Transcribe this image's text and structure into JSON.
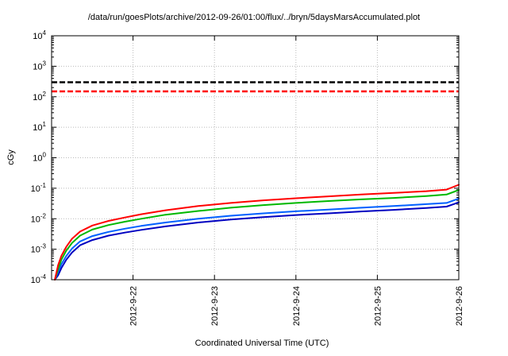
{
  "title": "/data/run/goesPlots/archive/2012-09-26/01:00/flux/../bryn/5daysMarsAccumulated.plot",
  "xlabel": "Coordinated Universal Time (UTC)",
  "ylabel": "cGy",
  "chart_data": {
    "type": "line",
    "title": "/data/run/goesPlots/archive/2012-09-26/01:00/flux/../bryn/5daysMarsAccumulated.plot",
    "xlabel": "Coordinated Universal Time (UTC)",
    "ylabel": "cGy",
    "y_scale": "log",
    "y_log_range": [
      -4,
      4
    ],
    "y_tick_exponents": [
      4,
      3,
      2,
      1,
      0,
      -1,
      -2,
      -3,
      -4
    ],
    "x_range": [
      0,
      5
    ],
    "x_ticks": [
      {
        "t": 1,
        "label": "2012-9-22"
      },
      {
        "t": 2,
        "label": "2012-9-23"
      },
      {
        "t": 3,
        "label": "2012-9-24"
      },
      {
        "t": 4,
        "label": "2012-9-25"
      },
      {
        "t": 5,
        "label": "2012-9-26"
      }
    ],
    "grid": true,
    "colors": {
      "grid": "#bbbbbb",
      "border": "#000000"
    },
    "thresholds": [
      {
        "name": "threshold-black-dashed",
        "value": 300,
        "color": "#000000"
      },
      {
        "name": "threshold-red-dashed",
        "value": 150,
        "color": "#ff0000"
      }
    ],
    "series": [
      {
        "name": "dark-blue",
        "color": "#0000c0",
        "points": [
          [
            0.04,
            0.0001
          ],
          [
            0.08,
            0.00014
          ],
          [
            0.12,
            0.00024
          ],
          [
            0.18,
            0.00045
          ],
          [
            0.25,
            0.00078
          ],
          [
            0.35,
            0.00135
          ],
          [
            0.5,
            0.002
          ],
          [
            0.7,
            0.0028
          ],
          [
            0.9,
            0.0035
          ],
          [
            1.1,
            0.0043
          ],
          [
            1.4,
            0.0056
          ],
          [
            1.8,
            0.0075
          ],
          [
            2.2,
            0.0094
          ],
          [
            2.6,
            0.0113
          ],
          [
            3.0,
            0.0132
          ],
          [
            3.4,
            0.015
          ],
          [
            3.8,
            0.0173
          ],
          [
            4.2,
            0.0195
          ],
          [
            4.6,
            0.0225
          ],
          [
            4.85,
            0.025
          ],
          [
            4.95,
            0.031
          ],
          [
            5.0,
            0.035
          ]
        ]
      },
      {
        "name": "blue",
        "color": "#0060ff",
        "points": [
          [
            0.04,
            0.0001
          ],
          [
            0.08,
            0.00018
          ],
          [
            0.12,
            0.00032
          ],
          [
            0.18,
            0.0006
          ],
          [
            0.25,
            0.00105
          ],
          [
            0.35,
            0.0018
          ],
          [
            0.5,
            0.0027
          ],
          [
            0.7,
            0.0037
          ],
          [
            0.9,
            0.0047
          ],
          [
            1.1,
            0.0058
          ],
          [
            1.4,
            0.0075
          ],
          [
            1.8,
            0.01
          ],
          [
            2.2,
            0.0125
          ],
          [
            2.6,
            0.015
          ],
          [
            3.0,
            0.0175
          ],
          [
            3.4,
            0.02
          ],
          [
            3.8,
            0.023
          ],
          [
            4.2,
            0.026
          ],
          [
            4.6,
            0.03
          ],
          [
            4.85,
            0.033
          ],
          [
            4.95,
            0.041
          ],
          [
            5.0,
            0.046
          ]
        ]
      },
      {
        "name": "green",
        "color": "#00b800",
        "points": [
          [
            0.04,
            0.0001
          ],
          [
            0.08,
            0.00022
          ],
          [
            0.12,
            0.00045
          ],
          [
            0.18,
            0.0009
          ],
          [
            0.25,
            0.0016
          ],
          [
            0.35,
            0.0028
          ],
          [
            0.5,
            0.0044
          ],
          [
            0.7,
            0.0062
          ],
          [
            0.9,
            0.008
          ],
          [
            1.1,
            0.01
          ],
          [
            1.4,
            0.0135
          ],
          [
            1.8,
            0.018
          ],
          [
            2.2,
            0.023
          ],
          [
            2.6,
            0.028
          ],
          [
            3.0,
            0.033
          ],
          [
            3.4,
            0.038
          ],
          [
            3.8,
            0.043
          ],
          [
            4.2,
            0.048
          ],
          [
            4.6,
            0.055
          ],
          [
            4.85,
            0.062
          ],
          [
            4.95,
            0.078
          ],
          [
            5.0,
            0.088
          ]
        ]
      },
      {
        "name": "red",
        "color": "#ff0000",
        "points": [
          [
            0.04,
            0.0001
          ],
          [
            0.08,
            0.0003
          ],
          [
            0.12,
            0.0006
          ],
          [
            0.18,
            0.0012
          ],
          [
            0.25,
            0.0022
          ],
          [
            0.35,
            0.0038
          ],
          [
            0.5,
            0.006
          ],
          [
            0.7,
            0.0085
          ],
          [
            0.9,
            0.011
          ],
          [
            1.1,
            0.014
          ],
          [
            1.4,
            0.019
          ],
          [
            1.8,
            0.026
          ],
          [
            2.2,
            0.033
          ],
          [
            2.6,
            0.04
          ],
          [
            3.0,
            0.047
          ],
          [
            3.4,
            0.054
          ],
          [
            3.8,
            0.062
          ],
          [
            4.2,
            0.07
          ],
          [
            4.6,
            0.08
          ],
          [
            4.85,
            0.09
          ],
          [
            4.95,
            0.115
          ],
          [
            5.0,
            0.13
          ]
        ]
      }
    ]
  }
}
